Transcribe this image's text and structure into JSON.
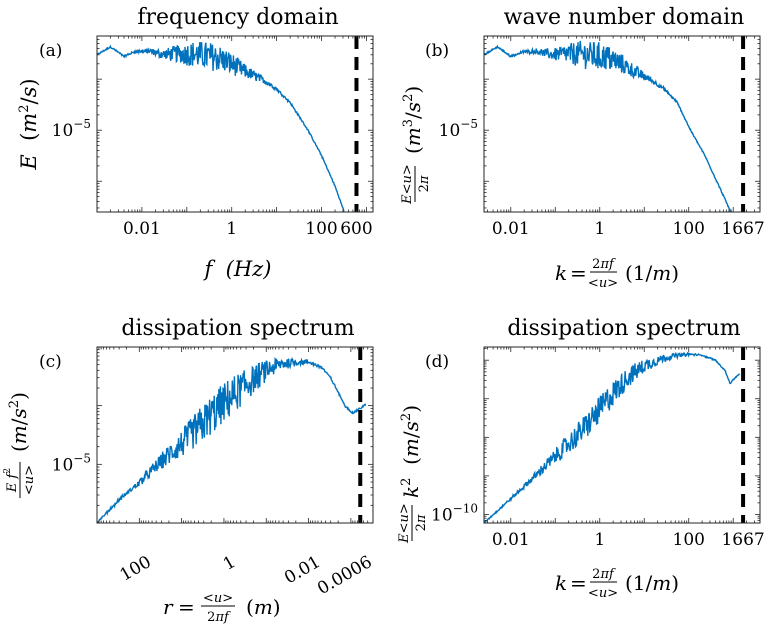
{
  "colors": {
    "series": "#0072BD",
    "cutoff": "#000000",
    "axes": "#262626"
  },
  "chart_data": [
    {
      "id": "a",
      "type": "line",
      "panel_tag": "(a)",
      "title": "frequency domain",
      "xlabel": "f  (Hz)",
      "ylabel": "E  (m²/s)",
      "xscale": "log",
      "yscale": "log",
      "xlim": [
        0.001,
        1400
      ],
      "ylim": [
        2.5e-07,
        0.0007
      ],
      "xticks": [
        {
          "v": 0.01,
          "t": "0.01"
        },
        {
          "v": 1,
          "t": "1"
        },
        {
          "v": 100,
          "t": "100"
        },
        {
          "v": 600,
          "t": "600"
        }
      ],
      "yticks": [
        {
          "v": 1e-05,
          "t": "10"
        }
      ],
      "ytick_exp": "−5",
      "cutoff_x": 600,
      "series": [
        {
          "x": [
            0.001,
            0.002,
            0.004,
            0.007,
            0.015,
            0.03,
            0.06,
            0.12,
            0.25,
            0.5,
            1,
            2,
            5,
            10,
            20,
            50,
            100,
            200,
            320
          ],
          "y": [
            0.0003,
            0.00043,
            0.00028,
            0.00035,
            0.00036,
            0.00032,
            0.00034,
            0.00035,
            0.00033,
            0.0003,
            0.00022,
            0.00015,
            0.0001,
            6.5e-05,
            3.5e-05,
            1e-05,
            3.2e-06,
            8e-07,
            2.5e-07
          ],
          "noise": [
            0.03,
            0.6
          ]
        }
      ]
    },
    {
      "id": "b",
      "type": "line",
      "panel_tag": "(b)",
      "title": "wave number domain",
      "xlabel": "k = 2πf / <u>  (1/m)",
      "ylabel": "(E <u>/2π)  (m³/s²)",
      "xscale": "log",
      "yscale": "log",
      "xlim": [
        0.0025,
        4000
      ],
      "ylim": [
        2.5e-07,
        0.0007
      ],
      "xticks": [
        {
          "v": 0.01,
          "t": "0.01"
        },
        {
          "v": 1,
          "t": "1"
        },
        {
          "v": 100,
          "t": "100"
        },
        {
          "v": 1667,
          "t": "1667"
        }
      ],
      "yticks": [
        {
          "v": 1e-05,
          "t": "10"
        }
      ],
      "ytick_exp": "−5",
      "cutoff_x": 1667,
      "series": [
        {
          "x": [
            0.0025,
            0.005,
            0.01,
            0.02,
            0.04,
            0.08,
            0.16,
            0.35,
            0.7,
            1.5,
            3,
            6,
            14,
            28,
            55,
            110,
            230,
            480,
            880
          ],
          "y": [
            0.0003,
            0.00043,
            0.00028,
            0.00035,
            0.00036,
            0.00032,
            0.00034,
            0.00035,
            0.00033,
            0.0003,
            0.00022,
            0.00015,
            0.0001,
            6.5e-05,
            3.5e-05,
            1e-05,
            3.2e-06,
            8e-07,
            2.5e-07
          ],
          "noise": [
            0.07,
            1.6
          ]
        }
      ]
    },
    {
      "id": "c",
      "type": "line",
      "panel_tag": "(c)",
      "title": "dissipation spectrum",
      "xlabel": "r = <u>/2πf  (m)",
      "ylabel": "(E f²/<u>)  (m/s²)",
      "xscale": "log-reversed",
      "yscale": "log",
      "xlim": [
        1000,
        0.0003
      ],
      "ylim": [
        1e-06,
        0.001
      ],
      "xticks": [
        {
          "v": 100,
          "t": "100"
        },
        {
          "v": 1,
          "t": "1"
        },
        {
          "v": 0.01,
          "t": "0.01"
        },
        {
          "v": 0.0006,
          "t": "0.0006"
        }
      ],
      "yticks": [
        {
          "v": 1e-05,
          "t": "10"
        }
      ],
      "ytick_exp": "−5",
      "rotated_xticks": true,
      "cutoff_x": 0.0006,
      "series": [
        {
          "x": [
            1000,
            300,
            100,
            30,
            10,
            3,
            1,
            0.3,
            0.1,
            0.05,
            0.025,
            0.01,
            0.005,
            0.003,
            0.002,
            0.0014,
            0.0009,
            0.0006,
            0.00045
          ],
          "y": [
            1e-06,
            2.5e-06,
            5e-06,
            1.2e-05,
            2.5e-05,
            6e-05,
            0.00013,
            0.00026,
            0.00043,
            0.00053,
            0.00057,
            0.00056,
            0.00046,
            0.0003,
            0.00017,
            0.0001,
            7.5e-05,
            9e-05,
            0.000105
          ],
          "noise": [
            2.0,
            0.2
          ]
        }
      ]
    },
    {
      "id": "d",
      "type": "line",
      "panel_tag": "(d)",
      "title": "dissipation spectrum",
      "xlabel": "k = 2πf / <u>  (1/m)",
      "ylabel": "(E <u>/2π) k²  (m/s²)",
      "xscale": "log",
      "yscale": "log",
      "xlim": [
        0.0025,
        4000
      ],
      "ylim": [
        6e-11,
        2.2e-06
      ],
      "xticks": [
        {
          "v": 0.01,
          "t": "0.01"
        },
        {
          "v": 1,
          "t": "1"
        },
        {
          "v": 100,
          "t": "100"
        },
        {
          "v": 1667,
          "t": "1667"
        }
      ],
      "yticks": [
        {
          "v": 1e-10,
          "t": "10"
        }
      ],
      "ytick_exp": "−10",
      "cutoff_x": 1667,
      "series": [
        {
          "x": [
            0.0025,
            0.006,
            0.015,
            0.04,
            0.1,
            0.25,
            0.6,
            1.5,
            4,
            10,
            25,
            50,
            100,
            200,
            400,
            650,
            850,
            1100,
            1400
          ],
          "y": [
            6e-11,
            1.5e-10,
            4e-10,
            1.2e-09,
            3.5e-09,
            1e-08,
            3e-08,
            1.1e-07,
            3.8e-07,
            7.8e-07,
            1.15e-06,
            1.35e-06,
            1.45e-06,
            1.35e-06,
            1e-06,
            5.5e-07,
            2.5e-07,
            3.5e-07,
            4.5e-07
          ],
          "noise": [
            0.02,
            0.6
          ]
        }
      ]
    }
  ]
}
